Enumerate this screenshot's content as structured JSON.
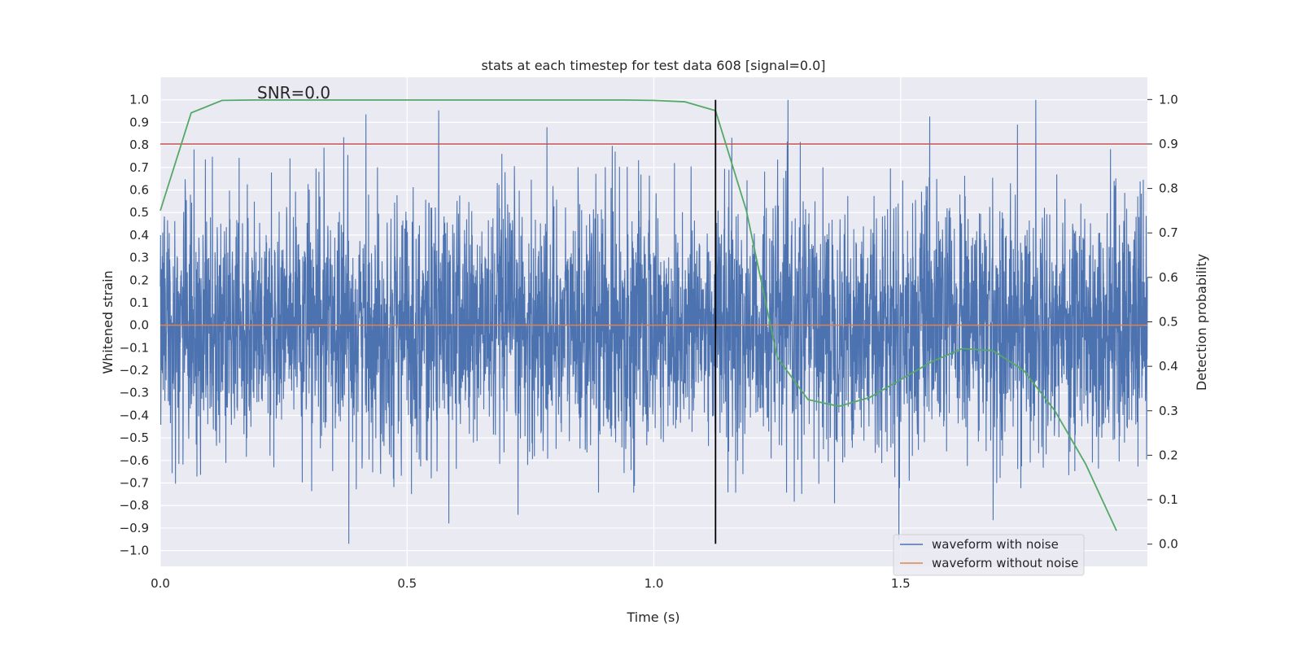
{
  "chart_data": {
    "type": "line",
    "title": "stats at each timestep for test data 608 [signal=0.0]",
    "xlabel": "Time (s)",
    "ylabel": "Whitened strain",
    "y2label": "Detection probability",
    "annotation": "SNR=0.0",
    "xlim": [
      0.0,
      2.0
    ],
    "ylim": [
      -1.07,
      1.1
    ],
    "y2lim": [
      -0.05,
      1.05
    ],
    "x_ticks": [
      0.0,
      0.5,
      1.0,
      1.5
    ],
    "x_tick_labels": [
      "0.0",
      "0.5",
      "1.0",
      "1.5"
    ],
    "y_ticks": [
      1.0,
      0.9,
      0.8,
      0.7,
      0.6,
      0.5,
      0.4,
      0.3,
      0.2,
      0.1,
      0.0,
      -0.1,
      -0.2,
      -0.3,
      -0.4,
      -0.5,
      -0.6,
      -0.7,
      -0.8,
      -0.9,
      -1.0
    ],
    "y_tick_labels": [
      "1.0",
      "0.9",
      "0.8",
      "0.7",
      "0.6",
      "0.5",
      "0.4",
      "0.3",
      "0.2",
      "0.1",
      "0.0",
      "−0.1",
      "−0.2",
      "−0.3",
      "−0.4",
      "−0.5",
      "−0.6",
      "−0.7",
      "−0.8",
      "−0.9",
      "−1.0"
    ],
    "y2_ticks": [
      1.0,
      0.9,
      0.8,
      0.7,
      0.6,
      0.5,
      0.4,
      0.3,
      0.2,
      0.1,
      0.0
    ],
    "y2_tick_labels": [
      "1.0",
      "0.9",
      "0.8",
      "0.7",
      "0.6",
      "0.5",
      "0.4",
      "0.3",
      "0.2",
      "0.1",
      "0.0"
    ],
    "grid": true,
    "legend_position": "bottom-right",
    "legend": [
      "waveform with noise",
      "waveform without noise"
    ],
    "series": [
      {
        "name": "waveform with noise",
        "color": "#4c72b0",
        "description_of_values": "dense noise, 4096 samples over 0-2 s, range approx -0.97 to 1.0",
        "amplitude_range": [
          -0.97,
          1.0
        ]
      },
      {
        "name": "waveform without noise",
        "color": "#dd8452",
        "constant_value": 0.0
      },
      {
        "color": "#55a868",
        "axis": "right",
        "x": [
          0.0,
          0.0625,
          0.125,
          0.1875,
          0.25,
          0.3125,
          0.375,
          0.4375,
          0.5,
          0.5625,
          0.625,
          0.6875,
          0.75,
          0.8125,
          0.875,
          0.9375,
          1.0,
          1.0625,
          1.125,
          1.1875,
          1.25,
          1.3125,
          1.375,
          1.4375,
          1.5,
          1.5625,
          1.625,
          1.6875,
          1.75,
          1.8125,
          1.875,
          1.9375
        ],
        "y": [
          0.75,
          0.97,
          0.998,
          0.999,
          0.999,
          0.999,
          0.999,
          0.999,
          0.999,
          0.999,
          0.999,
          0.999,
          0.999,
          0.999,
          0.999,
          0.999,
          0.998,
          0.995,
          0.975,
          0.75,
          0.42,
          0.325,
          0.31,
          0.33,
          0.37,
          0.41,
          0.44,
          0.435,
          0.39,
          0.3,
          0.18,
          0.03
        ]
      }
    ],
    "threshold_line": {
      "axis": "right",
      "value": 0.9,
      "color": "#c44e52"
    },
    "vertical_line": {
      "x": 1.125,
      "y_from": -0.97,
      "y_to": 1.0,
      "color": "#000000"
    }
  }
}
